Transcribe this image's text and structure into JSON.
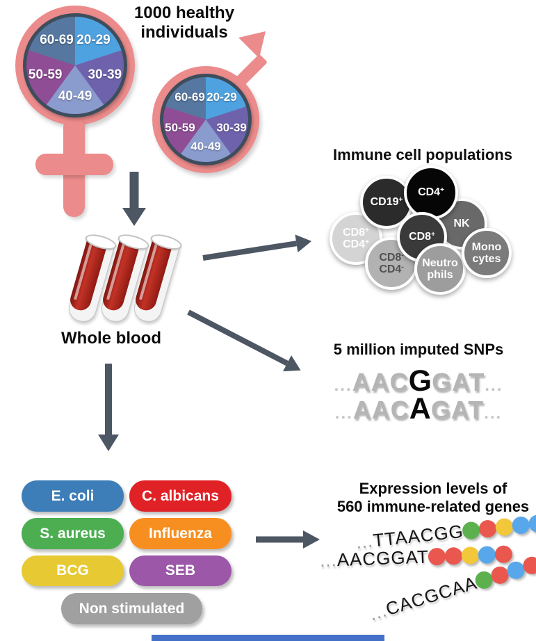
{
  "cohort": {
    "title_line1": "1000 healthy",
    "title_line2": "individuals"
  },
  "demographics": {
    "female_symbol_color": "#ec8b8b",
    "male_symbol_color": "#ec8b8b",
    "age_groups": [
      {
        "label": "20-29",
        "color": "#4fa2e0"
      },
      {
        "label": "30-39",
        "color": "#6f62ad"
      },
      {
        "label": "40-49",
        "color": "#8a9bce"
      },
      {
        "label": "50-59",
        "color": "#8f4d96"
      },
      {
        "label": "60-69",
        "color": "#56779f"
      }
    ]
  },
  "whole_blood": {
    "label": "Whole blood"
  },
  "immune_cells": {
    "heading": "Immune cell populations",
    "cells": [
      {
        "id": "cd8pos-cd4pos",
        "lines": [
          "CD8+",
          "CD4+"
        ],
        "bg": "#d4d4d4",
        "fg": "#ffffff"
      },
      {
        "id": "cd19pos",
        "lines": [
          "CD19+"
        ],
        "bg": "#2b2b2b",
        "fg": "#ffffff"
      },
      {
        "id": "nk",
        "lines": [
          "NK"
        ],
        "bg": "#696969",
        "fg": "#ffffff"
      },
      {
        "id": "cd4pos",
        "lines": [
          "CD4+"
        ],
        "bg": "#060606",
        "fg": "#ffffff"
      },
      {
        "id": "cd8neg-cd4neg",
        "lines": [
          "CD8-",
          "CD4-"
        ],
        "bg": "#b2b2b2",
        "fg": "#505050"
      },
      {
        "id": "cd8pos",
        "lines": [
          "CD8+"
        ],
        "bg": "#3a3a3a",
        "fg": "#ffffff"
      },
      {
        "id": "neutrophils",
        "lines": [
          "Neutro",
          "phils"
        ],
        "bg": "#9d9d9d",
        "fg": "#ffffff"
      },
      {
        "id": "monocytes",
        "lines": [
          "Mono",
          "cytes"
        ],
        "bg": "#7b7b7b",
        "fg": "#ffffff"
      }
    ]
  },
  "snps": {
    "heading": "5 million imputed SNPs",
    "sequences": [
      {
        "prefix": "...",
        "before": "AAC",
        "variant": "G",
        "after": "GAT",
        "suffix": "..."
      },
      {
        "prefix": "...",
        "before": "AAC",
        "variant": "A",
        "after": "GAT",
        "suffix": "..."
      }
    ]
  },
  "stimulations": {
    "items": [
      {
        "label": "E. coli",
        "color": "#3d7db8"
      },
      {
        "label": "C. albicans",
        "color": "#e02227"
      },
      {
        "label": "S. aureus",
        "color": "#4cae51"
      },
      {
        "label": "Influenza",
        "color": "#f78f20"
      },
      {
        "label": "BCG",
        "color": "#e7c934"
      },
      {
        "label": "SEB",
        "color": "#9c57a8"
      },
      {
        "label": "Non stimulated",
        "color": "#a0a0a0"
      }
    ]
  },
  "expression": {
    "heading_line1": "Expression levels of",
    "heading_line2": "560 immune-related genes",
    "dot_colors": {
      "green": "#5cb14e",
      "red": "#e9574f",
      "yellow": "#f2c73a",
      "blue": "#58a7ea"
    },
    "sequences": [
      {
        "text": "...TTAACGG",
        "dots": [
          "green",
          "red",
          "yellow",
          "blue",
          "blue"
        ]
      },
      {
        "text": "...AACGGAT",
        "dots": [
          "red",
          "red",
          "yellow",
          "blue",
          "red"
        ]
      },
      {
        "text": "...CACGCAA",
        "dots": [
          "green",
          "red",
          "blue",
          "red",
          "red"
        ]
      }
    ]
  },
  "arrow_color": "#4d5663",
  "accent_bar_color": "#4470c8"
}
